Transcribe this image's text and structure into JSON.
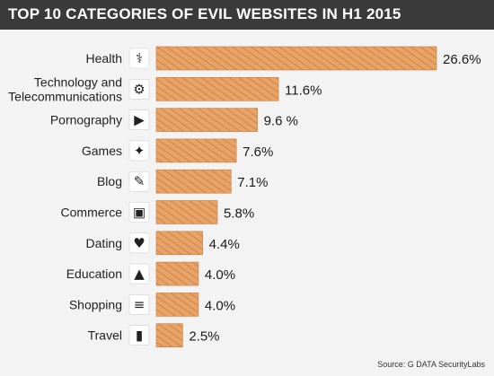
{
  "title": "TOP 10 CATEGORIES OF EVIL WEBSITES IN H1 2015",
  "source": "Source: G DATA SecurityLabs",
  "colors": {
    "bar": "#e8a468",
    "bar_hatch": "#c97a3a",
    "title_bg": "#3a3a3a",
    "background": "#f3f3f3"
  },
  "chart_data": {
    "type": "bar",
    "orientation": "horizontal",
    "categories": [
      "Health",
      "Technology and Telecommunications",
      "Pornography",
      "Games",
      "Blog",
      "Commerce",
      "Dating",
      "Education",
      "Shopping",
      "Travel"
    ],
    "label_lines": [
      [
        "Health"
      ],
      [
        "Technology and",
        "Telecommunications"
      ],
      [
        "Pornography"
      ],
      [
        "Games"
      ],
      [
        "Blog"
      ],
      [
        "Commerce"
      ],
      [
        "Dating"
      ],
      [
        "Education"
      ],
      [
        "Shopping"
      ],
      [
        "Travel"
      ]
    ],
    "values": [
      26.6,
      11.6,
      9.6,
      7.6,
      7.1,
      5.8,
      4.4,
      4.0,
      4.0,
      2.5
    ],
    "value_labels": [
      "26.6%",
      "11.6%",
      "9.6 %",
      "7.6%",
      "7.1%",
      "5.8%",
      "4.4%",
      "4.0%",
      "4.0%",
      "2.5%"
    ],
    "icons": [
      "caduceus-icon",
      "gear-icon",
      "play-icon",
      "gamepad-icon",
      "blog-icon",
      "briefcase-icon",
      "keyboard-heart-icon",
      "graduation-cap-icon",
      "shopping-cart-icon",
      "luggage-icon"
    ],
    "unit": "%",
    "xlim": [
      0,
      26.6
    ],
    "grid": false,
    "legend": "none"
  }
}
